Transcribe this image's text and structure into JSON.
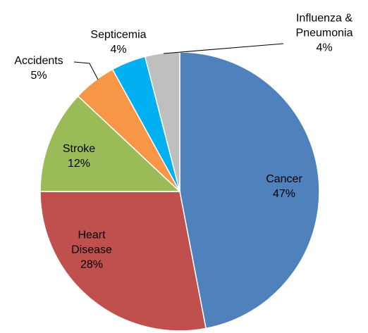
{
  "chart_data": {
    "type": "pie",
    "categories": [
      "Cancer",
      "Heart Disease",
      "Stroke",
      "Accidents",
      "Septicemia",
      "Influenza & Pneumonia"
    ],
    "values": [
      47,
      28,
      12,
      5,
      4,
      4
    ],
    "value_labels": [
      "47%",
      "28%",
      "12%",
      "5%",
      "4%",
      "4%"
    ],
    "colors": [
      "#4f81bd",
      "#c0504d",
      "#9bbb59",
      "#f79646",
      "#00b0f0",
      "#bfbfbf"
    ]
  }
}
